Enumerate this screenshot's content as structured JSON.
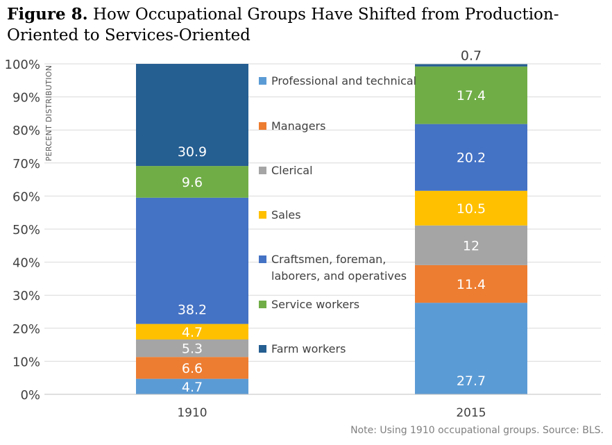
{
  "figure_label": "Figure 8.",
  "figure_title": "How Occupational Groups Have Shifted from Production-Oriented to Services-Oriented",
  "note": "Note: Using 1910 occupational groups. Source: BLS.",
  "chart_data": {
    "type": "bar",
    "stacked": true,
    "categories": [
      "1910",
      "2015"
    ],
    "ylabel": "PERCENT DISTRIBUTION",
    "ylim": [
      0,
      100
    ],
    "yticks": [
      "0%",
      "10%",
      "20%",
      "30%",
      "40%",
      "50%",
      "60%",
      "70%",
      "80%",
      "90%",
      "100%"
    ],
    "grid": true,
    "legend_position": "center",
    "series": [
      {
        "name": "Professional and technical",
        "color": "#5B9BD5",
        "values": [
          4.7,
          27.7
        ]
      },
      {
        "name": "Managers",
        "color": "#ED7D31",
        "values": [
          6.6,
          11.4
        ]
      },
      {
        "name": "Clerical",
        "color": "#A5A5A5",
        "values": [
          5.3,
          12
        ]
      },
      {
        "name": "Sales",
        "color": "#FFC000",
        "values": [
          4.7,
          10.5
        ]
      },
      {
        "name": "Craftsmen, foreman, laborers, and operatives",
        "legend_lines": [
          "Craftsmen, foreman,",
          "laborers, and operatives"
        ],
        "color": "#4472C4",
        "values": [
          38.2,
          20.2
        ]
      },
      {
        "name": "Service workers",
        "color": "#70AD47",
        "values": [
          9.6,
          17.4
        ]
      },
      {
        "name": "Farm workers",
        "color": "#255E91",
        "values": [
          30.9,
          0.7
        ]
      }
    ]
  }
}
